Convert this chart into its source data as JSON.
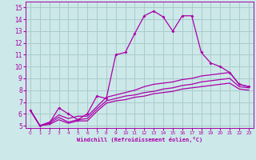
{
  "xlabel": "Windchill (Refroidissement éolien,°C)",
  "ylabel": "",
  "xlim": [
    -0.5,
    23.5
  ],
  "ylim": [
    4.8,
    15.5
  ],
  "xticks": [
    0,
    1,
    2,
    3,
    4,
    5,
    6,
    7,
    8,
    9,
    10,
    11,
    12,
    13,
    14,
    15,
    16,
    17,
    18,
    19,
    20,
    21,
    22,
    23
  ],
  "yticks": [
    5,
    6,
    7,
    8,
    9,
    10,
    11,
    12,
    13,
    14,
    15
  ],
  "bg_color": "#cce8e8",
  "grid_color": "#aacccc",
  "line_color": "#aa00aa",
  "line1_x": [
    0,
    1,
    2,
    3,
    4,
    5,
    6,
    7,
    8,
    9,
    10,
    11,
    12,
    13,
    14,
    15,
    16,
    17,
    18,
    19,
    20,
    21,
    22,
    23
  ],
  "line1_y": [
    6.3,
    5.0,
    5.2,
    6.5,
    6.0,
    5.5,
    6.0,
    7.5,
    7.3,
    11.0,
    11.2,
    12.8,
    14.3,
    14.7,
    14.2,
    13.0,
    14.3,
    14.3,
    11.2,
    10.3,
    10.0,
    9.5,
    8.5,
    8.3
  ],
  "line2_x": [
    0,
    1,
    2,
    3,
    4,
    5,
    6,
    7,
    8,
    9,
    10,
    11,
    12,
    13,
    14,
    15,
    16,
    17,
    18,
    19,
    20,
    21,
    22,
    23
  ],
  "line2_y": [
    6.3,
    5.0,
    5.3,
    5.9,
    5.6,
    5.8,
    5.8,
    6.6,
    7.4,
    7.6,
    7.8,
    8.0,
    8.3,
    8.5,
    8.6,
    8.7,
    8.9,
    9.0,
    9.2,
    9.3,
    9.4,
    9.5,
    8.5,
    8.3
  ],
  "line3_x": [
    0,
    1,
    2,
    3,
    4,
    5,
    6,
    7,
    8,
    9,
    10,
    11,
    12,
    13,
    14,
    15,
    16,
    17,
    18,
    19,
    20,
    21,
    22,
    23
  ],
  "line3_y": [
    6.3,
    5.0,
    5.2,
    5.7,
    5.3,
    5.5,
    5.6,
    6.4,
    7.1,
    7.3,
    7.5,
    7.6,
    7.8,
    7.9,
    8.1,
    8.2,
    8.4,
    8.5,
    8.7,
    8.8,
    8.9,
    9.0,
    8.3,
    8.2
  ],
  "line4_x": [
    0,
    1,
    2,
    3,
    4,
    5,
    6,
    7,
    8,
    9,
    10,
    11,
    12,
    13,
    14,
    15,
    16,
    17,
    18,
    19,
    20,
    21,
    22,
    23
  ],
  "line4_y": [
    6.3,
    5.0,
    5.1,
    5.5,
    5.2,
    5.4,
    5.4,
    6.2,
    6.9,
    7.1,
    7.2,
    7.4,
    7.5,
    7.7,
    7.8,
    7.9,
    8.1,
    8.2,
    8.3,
    8.4,
    8.5,
    8.6,
    8.1,
    8.0
  ],
  "xlabel_fontsize": 5.0,
  "ytick_fontsize": 5.5,
  "xtick_fontsize": 4.2
}
